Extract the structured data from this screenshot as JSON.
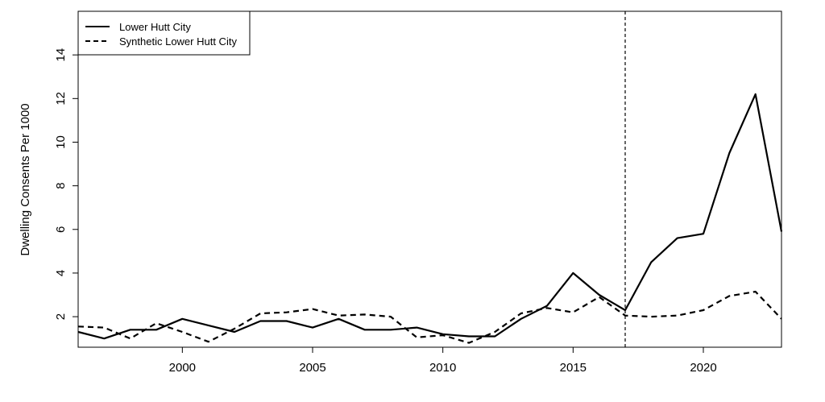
{
  "chart_data": {
    "type": "line",
    "title": "",
    "xlabel": "",
    "ylabel": "Dwelling Consents Per 1000",
    "xlim": [
      1996,
      2023
    ],
    "ylim": [
      0.6,
      16
    ],
    "x_ticks": [
      "2000",
      "2005",
      "2010",
      "2015",
      "2020"
    ],
    "y_ticks": [
      "2",
      "4",
      "6",
      "8",
      "10",
      "12",
      "14"
    ],
    "grid": false,
    "legend_position": "top-left",
    "reference_line_x": 2017,
    "x": [
      1996,
      1997,
      1998,
      1999,
      2000,
      2001,
      2002,
      2003,
      2004,
      2005,
      2006,
      2007,
      2008,
      2009,
      2010,
      2011,
      2012,
      2013,
      2014,
      2015,
      2016,
      2017,
      2018,
      2019,
      2020,
      2021,
      2022,
      2023
    ],
    "series": [
      {
        "name": "Lower Hutt City",
        "style": "solid",
        "values": [
          1.3,
          1.0,
          1.4,
          1.4,
          1.9,
          1.6,
          1.3,
          1.8,
          1.8,
          1.5,
          1.9,
          1.4,
          1.4,
          1.5,
          1.2,
          1.1,
          1.1,
          1.9,
          2.5,
          4.0,
          3.0,
          2.3,
          4.5,
          5.6,
          5.8,
          9.5,
          12.2,
          5.9
        ]
      },
      {
        "name": "Synthetic Lower Hutt City",
        "style": "dashed",
        "values": [
          1.55,
          1.5,
          1.0,
          1.7,
          1.3,
          0.85,
          1.45,
          2.15,
          2.2,
          2.35,
          2.05,
          2.1,
          2.0,
          1.05,
          1.15,
          0.8,
          1.3,
          2.15,
          2.4,
          2.2,
          2.9,
          2.05,
          2.0,
          2.05,
          2.3,
          2.95,
          3.15,
          1.9
        ]
      }
    ]
  }
}
